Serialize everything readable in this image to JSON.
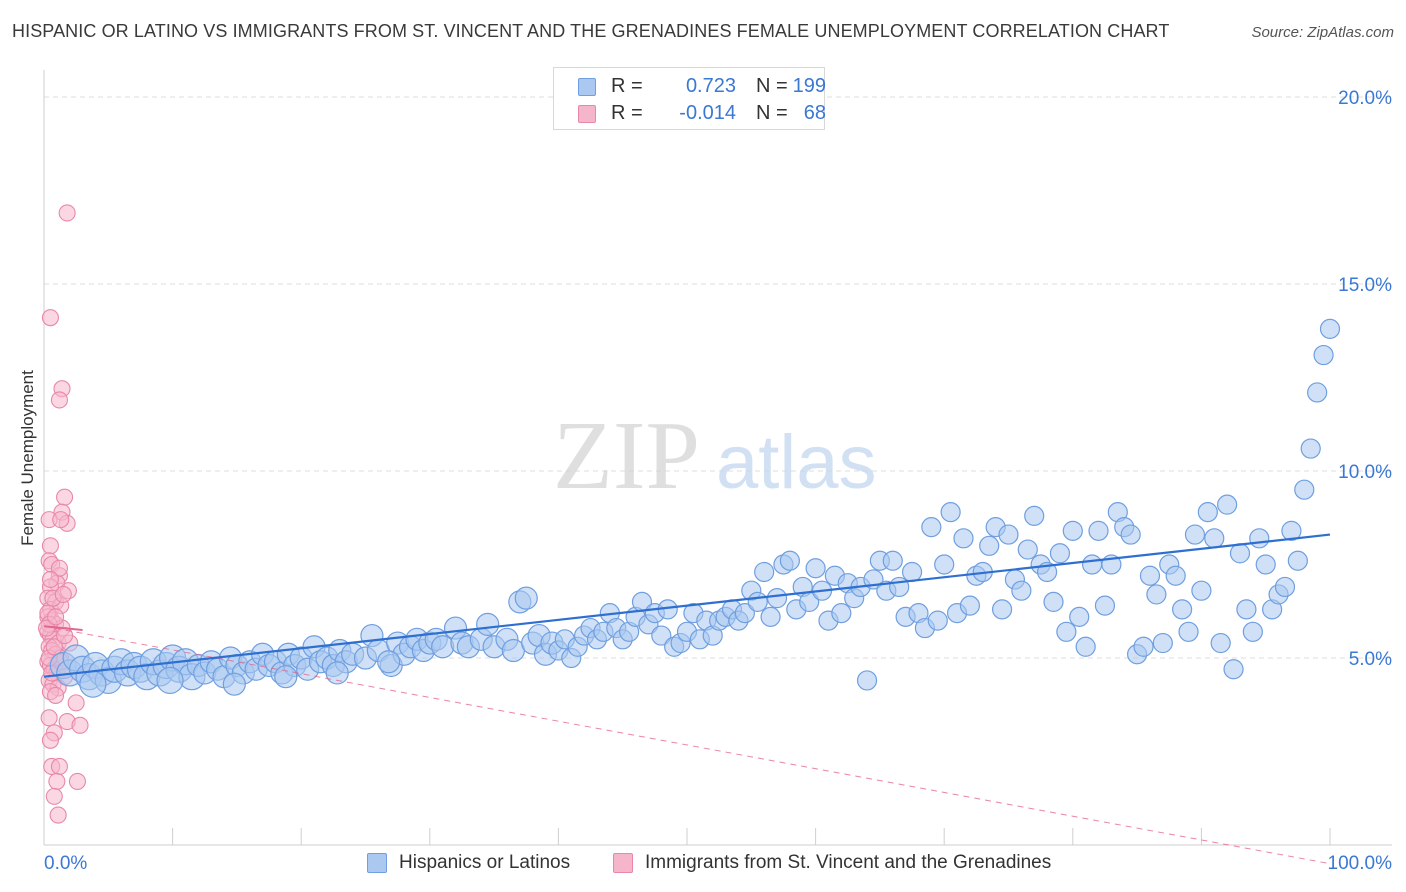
{
  "title": "HISPANIC OR LATINO VS IMMIGRANTS FROM ST. VINCENT AND THE GRENADINES FEMALE UNEMPLOYMENT CORRELATION CHART",
  "source": "Source: ZipAtlas.com",
  "watermark": {
    "zip": "ZIP",
    "atlas": "atlas"
  },
  "legend_top": {
    "row1": {
      "r_label": "R =",
      "r_value": "0.723",
      "n_label": "N =",
      "n_value": "199"
    },
    "row2": {
      "r_label": "R =",
      "r_value": "-0.014",
      "n_label": "N =",
      "n_value": "68"
    }
  },
  "legend_bottom": {
    "series1": "Hispanics or Latinos",
    "series2": "Immigrants from St. Vincent and the Grenadines"
  },
  "colors": {
    "blue_fill": "#aac8f0",
    "blue_stroke": "#6f9fe0",
    "blue_line": "#2e6fd0",
    "pink_fill": "#f5b6cc",
    "pink_stroke": "#e888a8",
    "pink_line": "#e06890",
    "grid": "#dcdcdc",
    "axis_text": "#3a78d4"
  },
  "chart_data": {
    "type": "scatter",
    "ylabel": "Female Unemployment",
    "xlabel": "",
    "xlim": [
      0,
      100
    ],
    "ylim": [
      0,
      20.5
    ],
    "x_tick_labels": [
      "0.0%",
      "100.0%"
    ],
    "y_tick_labels": [
      "5.0%",
      "10.0%",
      "15.0%",
      "20.0%"
    ],
    "y_ticks": [
      5,
      10,
      15,
      20
    ],
    "grid": "horizontal dashed",
    "legend_placement": "top-center",
    "series": [
      {
        "name": "Hispanics or Latinos",
        "color": "#6f9fe0",
        "R": 0.723,
        "N": 199,
        "trend": {
          "x": [
            0,
            100
          ],
          "y": [
            4.5,
            8.3
          ]
        },
        "points": [
          [
            1.5,
            4.8
          ],
          [
            2.0,
            4.6
          ],
          [
            2.5,
            5.0
          ],
          [
            3.0,
            4.7
          ],
          [
            3.5,
            4.5
          ],
          [
            4.0,
            4.8
          ],
          [
            4.5,
            4.6
          ],
          [
            5.0,
            4.4
          ],
          [
            5.5,
            4.7
          ],
          [
            6.0,
            4.9
          ],
          [
            6.5,
            4.6
          ],
          [
            7.0,
            4.8
          ],
          [
            7.5,
            4.7
          ],
          [
            8.0,
            4.5
          ],
          [
            8.5,
            4.9
          ],
          [
            9.0,
            4.6
          ],
          [
            9.5,
            4.8
          ],
          [
            10.0,
            5.0
          ],
          [
            10.5,
            4.7
          ],
          [
            11.0,
            4.9
          ],
          [
            11.5,
            4.5
          ],
          [
            12.0,
            4.8
          ],
          [
            12.5,
            4.6
          ],
          [
            13.0,
            4.9
          ],
          [
            13.5,
            4.7
          ],
          [
            14.0,
            4.5
          ],
          [
            14.5,
            5.0
          ],
          [
            15.0,
            4.8
          ],
          [
            15.5,
            4.6
          ],
          [
            16.0,
            4.9
          ],
          [
            16.5,
            4.7
          ],
          [
            17.0,
            5.1
          ],
          [
            17.5,
            4.8
          ],
          [
            18.0,
            4.9
          ],
          [
            18.5,
            4.6
          ],
          [
            19.0,
            5.1
          ],
          [
            19.5,
            4.8
          ],
          [
            20.0,
            5.0
          ],
          [
            20.5,
            4.7
          ],
          [
            21.0,
            5.3
          ],
          [
            21.5,
            4.9
          ],
          [
            22.0,
            5.0
          ],
          [
            22.5,
            4.8
          ],
          [
            23.0,
            5.2
          ],
          [
            23.5,
            4.9
          ],
          [
            24.0,
            5.1
          ],
          [
            25.0,
            5.0
          ],
          [
            25.5,
            5.6
          ],
          [
            26.0,
            5.2
          ],
          [
            27.0,
            4.8
          ],
          [
            27.5,
            5.4
          ],
          [
            28.0,
            5.1
          ],
          [
            28.5,
            5.3
          ],
          [
            29.0,
            5.5
          ],
          [
            29.5,
            5.2
          ],
          [
            30.0,
            5.4
          ],
          [
            30.5,
            5.5
          ],
          [
            31.0,
            5.3
          ],
          [
            32.0,
            5.8
          ],
          [
            32.5,
            5.4
          ],
          [
            33.0,
            5.3
          ],
          [
            34.0,
            5.5
          ],
          [
            34.5,
            5.9
          ],
          [
            35.0,
            5.3
          ],
          [
            36.0,
            5.5
          ],
          [
            36.5,
            5.2
          ],
          [
            37.0,
            6.5
          ],
          [
            37.5,
            6.6
          ],
          [
            38.0,
            5.4
          ],
          [
            38.5,
            5.6
          ],
          [
            39.0,
            5.1
          ],
          [
            39.5,
            5.4
          ],
          [
            40.0,
            5.2
          ],
          [
            40.5,
            5.5
          ],
          [
            41.0,
            5.0
          ],
          [
            41.5,
            5.3
          ],
          [
            42.0,
            5.6
          ],
          [
            42.5,
            5.8
          ],
          [
            43.0,
            5.5
          ],
          [
            43.5,
            5.7
          ],
          [
            44.0,
            6.2
          ],
          [
            44.5,
            5.8
          ],
          [
            45.0,
            5.5
          ],
          [
            45.5,
            5.7
          ],
          [
            46.0,
            6.1
          ],
          [
            46.5,
            6.5
          ],
          [
            47.0,
            5.9
          ],
          [
            47.5,
            6.2
          ],
          [
            48.0,
            5.6
          ],
          [
            48.5,
            6.3
          ],
          [
            49.0,
            5.3
          ],
          [
            49.5,
            5.4
          ],
          [
            50.0,
            5.7
          ],
          [
            50.5,
            6.2
          ],
          [
            51.0,
            5.5
          ],
          [
            51.5,
            6.0
          ],
          [
            52.0,
            5.6
          ],
          [
            52.5,
            6.0
          ],
          [
            53.0,
            6.1
          ],
          [
            53.5,
            6.3
          ],
          [
            54.0,
            6.0
          ],
          [
            54.5,
            6.2
          ],
          [
            55.0,
            6.8
          ],
          [
            55.5,
            6.5
          ],
          [
            56.0,
            7.3
          ],
          [
            56.5,
            6.1
          ],
          [
            57.0,
            6.6
          ],
          [
            57.5,
            7.5
          ],
          [
            58.0,
            7.6
          ],
          [
            58.5,
            6.3
          ],
          [
            59.0,
            6.9
          ],
          [
            59.5,
            6.5
          ],
          [
            60.0,
            7.4
          ],
          [
            60.5,
            6.8
          ],
          [
            61.0,
            6.0
          ],
          [
            61.5,
            7.2
          ],
          [
            62.0,
            6.2
          ],
          [
            62.5,
            7.0
          ],
          [
            63.0,
            6.6
          ],
          [
            63.5,
            6.9
          ],
          [
            64.0,
            4.4
          ],
          [
            64.5,
            7.1
          ],
          [
            65.0,
            7.6
          ],
          [
            65.5,
            6.8
          ],
          [
            66.0,
            7.6
          ],
          [
            66.5,
            6.9
          ],
          [
            67.0,
            6.1
          ],
          [
            67.5,
            7.3
          ],
          [
            68.0,
            6.2
          ],
          [
            68.5,
            5.8
          ],
          [
            69.0,
            8.5
          ],
          [
            69.5,
            6.0
          ],
          [
            70.0,
            7.5
          ],
          [
            70.5,
            8.9
          ],
          [
            71.0,
            6.2
          ],
          [
            71.5,
            8.2
          ],
          [
            72.0,
            6.4
          ],
          [
            72.5,
            7.2
          ],
          [
            73.0,
            7.3
          ],
          [
            73.5,
            8.0
          ],
          [
            74.0,
            8.5
          ],
          [
            74.5,
            6.3
          ],
          [
            75.0,
            8.3
          ],
          [
            75.5,
            7.1
          ],
          [
            76.0,
            6.8
          ],
          [
            76.5,
            7.9
          ],
          [
            77.0,
            8.8
          ],
          [
            77.5,
            7.5
          ],
          [
            78.0,
            7.3
          ],
          [
            78.5,
            6.5
          ],
          [
            79.0,
            7.8
          ],
          [
            79.5,
            5.7
          ],
          [
            80.0,
            8.4
          ],
          [
            80.5,
            6.1
          ],
          [
            81.0,
            5.3
          ],
          [
            81.5,
            7.5
          ],
          [
            82.0,
            8.4
          ],
          [
            82.5,
            6.4
          ],
          [
            83.0,
            7.5
          ],
          [
            83.5,
            8.9
          ],
          [
            84.0,
            8.5
          ],
          [
            84.5,
            8.3
          ],
          [
            85.0,
            5.1
          ],
          [
            85.5,
            5.3
          ],
          [
            86.0,
            7.2
          ],
          [
            86.5,
            6.7
          ],
          [
            87.0,
            5.4
          ],
          [
            87.5,
            7.5
          ],
          [
            88.0,
            7.2
          ],
          [
            88.5,
            6.3
          ],
          [
            89.0,
            5.7
          ],
          [
            89.5,
            8.3
          ],
          [
            90.0,
            6.8
          ],
          [
            90.5,
            8.9
          ],
          [
            91.0,
            8.2
          ],
          [
            91.5,
            5.4
          ],
          [
            92.0,
            9.1
          ],
          [
            92.5,
            4.7
          ],
          [
            93.0,
            7.8
          ],
          [
            93.5,
            6.3
          ],
          [
            94.0,
            5.7
          ],
          [
            94.5,
            8.2
          ],
          [
            95.0,
            7.5
          ],
          [
            95.5,
            6.3
          ],
          [
            96.0,
            6.7
          ],
          [
            96.5,
            6.9
          ],
          [
            97.0,
            8.4
          ],
          [
            97.5,
            7.6
          ],
          [
            98.0,
            9.5
          ],
          [
            98.5,
            10.6
          ],
          [
            99.0,
            12.1
          ],
          [
            99.5,
            13.1
          ],
          [
            100.0,
            13.8
          ],
          [
            3.8,
            4.3
          ],
          [
            9.8,
            4.4
          ],
          [
            14.8,
            4.3
          ],
          [
            18.8,
            4.5
          ],
          [
            22.8,
            4.6
          ],
          [
            26.8,
            4.9
          ]
        ]
      },
      {
        "name": "Immigrants from St. Vincent and the Grenadines",
        "color": "#e888a8",
        "R": -0.014,
        "N": 68,
        "trend": {
          "x": [
            0,
            3
          ],
          "y": [
            5.85,
            5.75
          ]
        },
        "trend_extension": {
          "x": [
            0,
            100
          ],
          "y": [
            5.85,
            -0.5
          ]
        },
        "points": [
          [
            1.8,
            16.9
          ],
          [
            0.5,
            14.1
          ],
          [
            1.4,
            12.2
          ],
          [
            1.2,
            11.9
          ],
          [
            1.6,
            9.3
          ],
          [
            1.4,
            8.9
          ],
          [
            1.8,
            8.6
          ],
          [
            0.4,
            8.7
          ],
          [
            1.3,
            8.7
          ],
          [
            0.5,
            8.0
          ],
          [
            0.4,
            7.6
          ],
          [
            0.6,
            7.5
          ],
          [
            1.2,
            7.2
          ],
          [
            1.0,
            7.0
          ],
          [
            0.5,
            6.9
          ],
          [
            1.9,
            6.8
          ],
          [
            0.3,
            6.6
          ],
          [
            0.9,
            6.5
          ],
          [
            0.5,
            6.3
          ],
          [
            1.3,
            6.4
          ],
          [
            0.3,
            6.1
          ],
          [
            0.6,
            6.0
          ],
          [
            0.9,
            5.9
          ],
          [
            1.4,
            5.8
          ],
          [
            0.3,
            5.7
          ],
          [
            0.5,
            5.6
          ],
          [
            0.7,
            5.5
          ],
          [
            1.1,
            5.4
          ],
          [
            2.0,
            5.4
          ],
          [
            0.4,
            5.3
          ],
          [
            0.6,
            5.2
          ],
          [
            0.9,
            5.1
          ],
          [
            1.3,
            5.0
          ],
          [
            0.3,
            4.9
          ],
          [
            0.5,
            4.8
          ],
          [
            0.8,
            4.7
          ],
          [
            1.0,
            4.6
          ],
          [
            1.6,
            4.5
          ],
          [
            0.4,
            4.4
          ],
          [
            0.7,
            4.3
          ],
          [
            1.1,
            4.2
          ],
          [
            0.5,
            4.1
          ],
          [
            0.9,
            4.0
          ],
          [
            2.5,
            3.8
          ],
          [
            1.8,
            3.3
          ],
          [
            0.4,
            3.4
          ],
          [
            2.8,
            3.2
          ],
          [
            0.8,
            3.0
          ],
          [
            0.5,
            2.8
          ],
          [
            0.6,
            2.1
          ],
          [
            1.2,
            2.1
          ],
          [
            2.6,
            1.7
          ],
          [
            1.0,
            1.7
          ],
          [
            0.8,
            1.3
          ],
          [
            1.1,
            0.8
          ],
          [
            0.3,
            6.2
          ],
          [
            0.7,
            6.6
          ],
          [
            1.5,
            6.7
          ],
          [
            0.4,
            5.9
          ],
          [
            0.6,
            4.6
          ],
          [
            1.3,
            4.9
          ],
          [
            0.4,
            5.0
          ],
          [
            0.8,
            5.3
          ],
          [
            1.6,
            5.6
          ],
          [
            0.2,
            5.8
          ],
          [
            0.9,
            6.1
          ],
          [
            1.2,
            7.4
          ],
          [
            0.5,
            7.1
          ]
        ]
      }
    ]
  }
}
